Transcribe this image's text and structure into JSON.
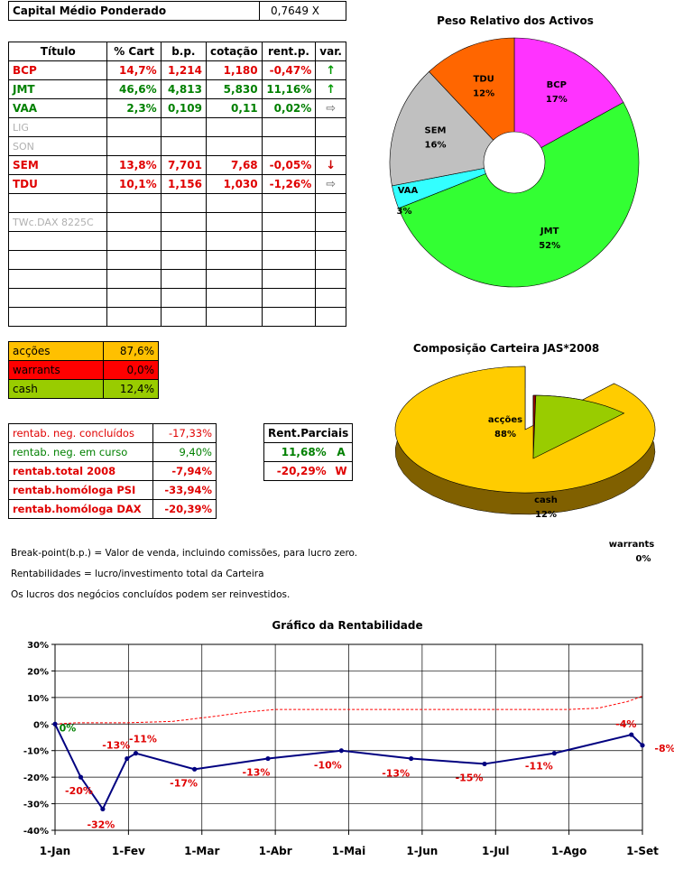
{
  "capital": {
    "label": "Capital Médio Ponderado",
    "value": "0,7649 X"
  },
  "portfolio": {
    "headers": [
      "Título",
      "% Cart",
      "b.p.",
      "cotação",
      "rent.p.",
      "var."
    ],
    "rows": [
      {
        "titulo": "BCP",
        "cart": "14,7%",
        "bp": "1,214",
        "cot": "1,180",
        "rent": "-0,47%",
        "var": "up",
        "color": "red"
      },
      {
        "titulo": "JMT",
        "cart": "46,6%",
        "bp": "4,813",
        "cot": "5,830",
        "rent": "11,16%",
        "var": "up",
        "color": "green"
      },
      {
        "titulo": "VAA",
        "cart": "2,3%",
        "bp": "0,109",
        "cot": "0,11",
        "rent": "0,02%",
        "var": "right",
        "color": "green"
      },
      {
        "titulo": "LIG",
        "cart": "",
        "bp": "",
        "cot": "",
        "rent": "",
        "var": "",
        "color": "grey"
      },
      {
        "titulo": "SON",
        "cart": "",
        "bp": "",
        "cot": "",
        "rent": "",
        "var": "",
        "color": "grey"
      },
      {
        "titulo": "SEM",
        "cart": "13,8%",
        "bp": "7,701",
        "cot": "7,68",
        "rent": "-0,05%",
        "var": "down",
        "color": "red"
      },
      {
        "titulo": "TDU",
        "cart": "10,1%",
        "bp": "1,156",
        "cot": "1,030",
        "rent": "-1,26%",
        "var": "right",
        "color": "red"
      },
      {
        "titulo": "",
        "cart": "",
        "bp": "",
        "cot": "",
        "rent": "",
        "var": "",
        "color": "grey"
      },
      {
        "titulo": "TWc.DAX 8225C",
        "cart": "",
        "bp": "",
        "cot": "",
        "rent": "",
        "var": "",
        "color": "grey"
      },
      {
        "titulo": "",
        "cart": "",
        "bp": "",
        "cot": "",
        "rent": "",
        "var": "",
        "color": "grey"
      },
      {
        "titulo": "",
        "cart": "",
        "bp": "",
        "cot": "",
        "rent": "",
        "var": "",
        "color": "grey"
      },
      {
        "titulo": "",
        "cart": "",
        "bp": "",
        "cot": "",
        "rent": "",
        "var": "",
        "color": "grey"
      },
      {
        "titulo": "",
        "cart": "",
        "bp": "",
        "cot": "",
        "rent": "",
        "var": "",
        "color": "grey"
      },
      {
        "titulo": "",
        "cart": "",
        "bp": "",
        "cot": "",
        "rent": "",
        "var": "",
        "color": "grey"
      }
    ]
  },
  "allocation": [
    {
      "label": "acções",
      "value": "87,6%",
      "bg": "#ffc000",
      "fg": "#000000"
    },
    {
      "label": "warrants",
      "value": "0,0%",
      "bg": "#ff0000",
      "fg": "#000000"
    },
    {
      "label": "cash",
      "value": "12,4%",
      "bg": "#99cc00",
      "fg": "#000000"
    }
  ],
  "returns": [
    {
      "label": "rentab. neg. concluídos",
      "value": "-17,33%",
      "color": "#e00000",
      "bold": false
    },
    {
      "label": "rentab. neg. em curso",
      "value": "9,40%",
      "color": "#008000",
      "bold": false
    },
    {
      "label": "rentab.total 2008",
      "value": "-7,94%",
      "color": "#e00000",
      "bold": true
    },
    {
      "label": "rentab.homóloga PSI",
      "value": "-33,94%",
      "color": "#e00000",
      "bold": true
    },
    {
      "label": "rentab.homóloga DAX",
      "value": "-20,39%",
      "color": "#e00000",
      "bold": true
    }
  ],
  "partial": {
    "header": "Rent.Parciais",
    "rows": [
      {
        "value": "11,68%",
        "code": "A",
        "color": "#008000"
      },
      {
        "value": "-20,29%",
        "code": "W",
        "color": "#e00000"
      }
    ]
  },
  "notes": [
    "Break-point(b.p.) = Valor de venda, incluindo comissões, para lucro zero.",
    "Rentabilidades = lucro/investimento total da Carteira",
    "Os lucros dos negócios concluídos podem ser reinvestidos."
  ],
  "chart_data": [
    {
      "type": "pie",
      "title": "Peso Relativo dos Activos",
      "labels": [
        "BCP",
        "JMT",
        "VAA",
        "SEM",
        "TDU"
      ],
      "values": [
        17,
        52,
        3,
        16,
        12
      ],
      "value_labels": [
        "17%",
        "52%",
        "3%",
        "16%",
        "12%"
      ],
      "colors": [
        "#ff33ff",
        "#33ff33",
        "#33ffff",
        "#c0c0c0",
        "#ff6600"
      ],
      "donut": true
    },
    {
      "type": "pie",
      "title": "Composição Carteira JAS*2008",
      "labels": [
        "acções",
        "warrants",
        "cash"
      ],
      "values": [
        88,
        0,
        12
      ],
      "value_labels": [
        "88%",
        "0%",
        "12%"
      ],
      "colors": [
        "#ffcc00",
        "#990000",
        "#99cc00"
      ],
      "exploded": true
    },
    {
      "type": "line",
      "title": "Gráfico da Rentabilidade",
      "x_ticks": [
        "1-Jan",
        "1-Fev",
        "1-Mar",
        "1-Abr",
        "1-Mai",
        "1-Jun",
        "1-Jul",
        "1-Ago",
        "1-Set"
      ],
      "y_ticks": [
        "30%",
        "20%",
        "10%",
        "0%",
        "-10%",
        "-20%",
        "-30%",
        "-40%"
      ],
      "ylim": [
        -40,
        30
      ],
      "series": [
        {
          "x": [
            0,
            0.35,
            0.65,
            0.98,
            1.1,
            1.9,
            2.9,
            3.9,
            4.85,
            5.85,
            6.8,
            7.85,
            8.0
          ],
          "y": [
            0,
            -20,
            -32,
            -13,
            -11,
            -17,
            -13,
            -10,
            -13,
            -15,
            -11,
            -4,
            -8
          ],
          "labels": [
            "0%",
            "-20%",
            "-32%",
            "-13%",
            "-11%",
            "-17%",
            "-13%",
            "-10%",
            "-13%",
            "-15%",
            "-11%",
            "-4%",
            "-8%"
          ],
          "color": "#000080"
        },
        {
          "x": [
            0,
            0.3,
            1.0,
            1.6,
            2.2,
            2.6,
            3.0,
            4.0,
            5.0,
            6.0,
            7.0,
            7.4,
            7.8,
            8.0
          ],
          "y": [
            0,
            0.5,
            0.5,
            1.0,
            3.0,
            4.5,
            5.5,
            5.5,
            5.5,
            5.5,
            5.5,
            6.0,
            8.5,
            10.5
          ],
          "color": "#ff0000",
          "dashed": true
        }
      ],
      "grid": true
    }
  ]
}
